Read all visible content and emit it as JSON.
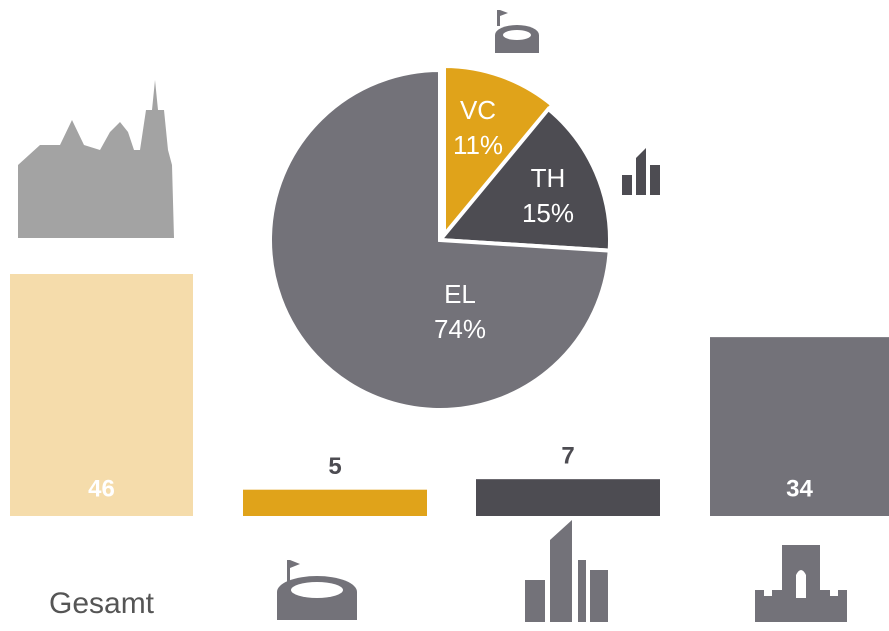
{
  "chart_data": [
    {
      "type": "pie",
      "categories": [
        "VC",
        "TH",
        "EL"
      ],
      "values": [
        11,
        15,
        74
      ],
      "value_labels": [
        "11%",
        "15%",
        "74%"
      ],
      "colors": [
        "#e0a31a",
        "#4d4c52",
        "#737279"
      ]
    },
    {
      "type": "bar",
      "categories": [
        "Gesamt",
        null,
        null,
        null
      ],
      "values": [
        46,
        5,
        7,
        34
      ],
      "colors": [
        "#f5dcab",
        "#e0a31a",
        "#4d4c52",
        "#737279"
      ]
    }
  ]
}
